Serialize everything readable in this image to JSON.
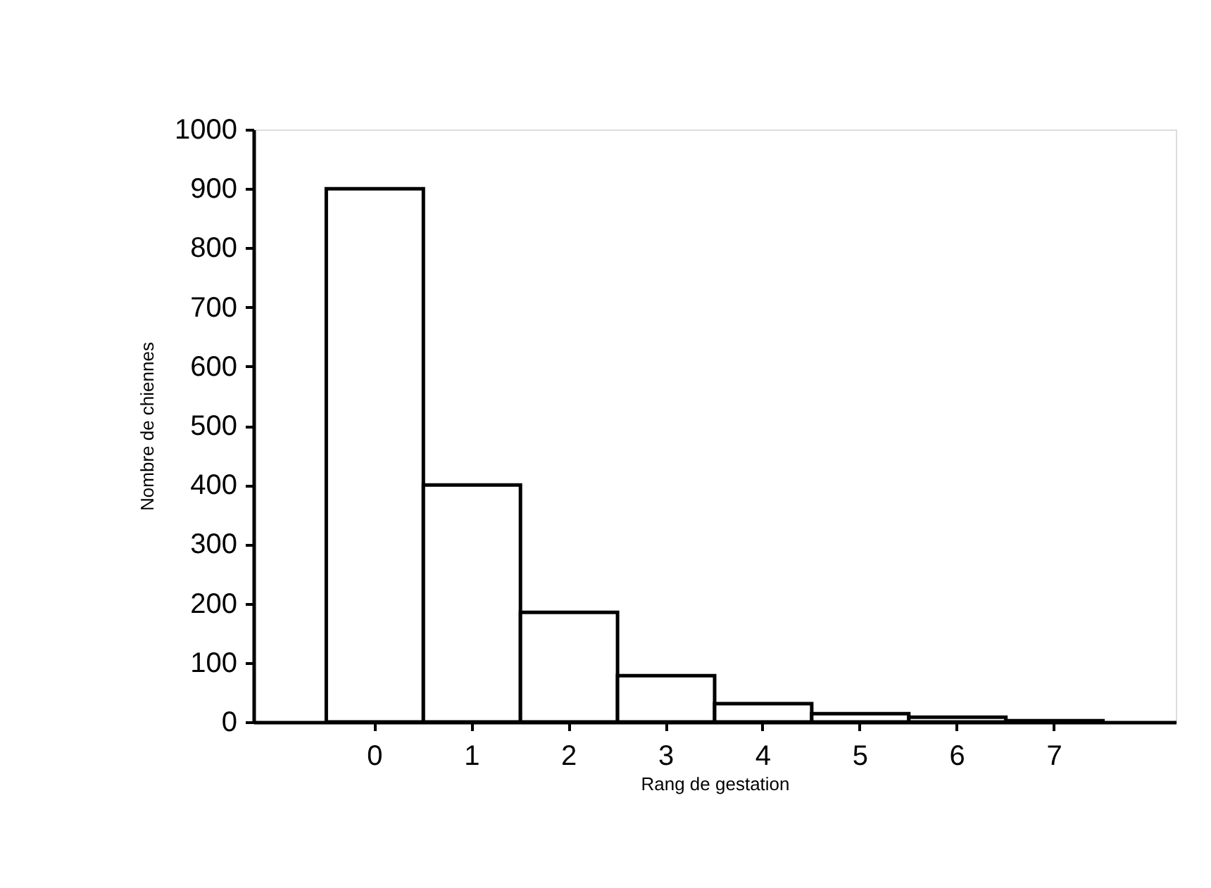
{
  "chart_data": {
    "type": "bar",
    "xlabel": "Rang de gestation",
    "ylabel": "Nombre de chiennes",
    "categories": [
      "0",
      "1",
      "2",
      "3",
      "4",
      "5",
      "6",
      "7"
    ],
    "values": [
      900,
      400,
      185,
      78,
      31,
      14,
      8,
      2
    ],
    "color": "#ffffff",
    "ylim": [
      0,
      1000
    ],
    "yticks": [
      0,
      100,
      200,
      300,
      400,
      500,
      600,
      700,
      800,
      900,
      1000
    ],
    "grid": false
  }
}
